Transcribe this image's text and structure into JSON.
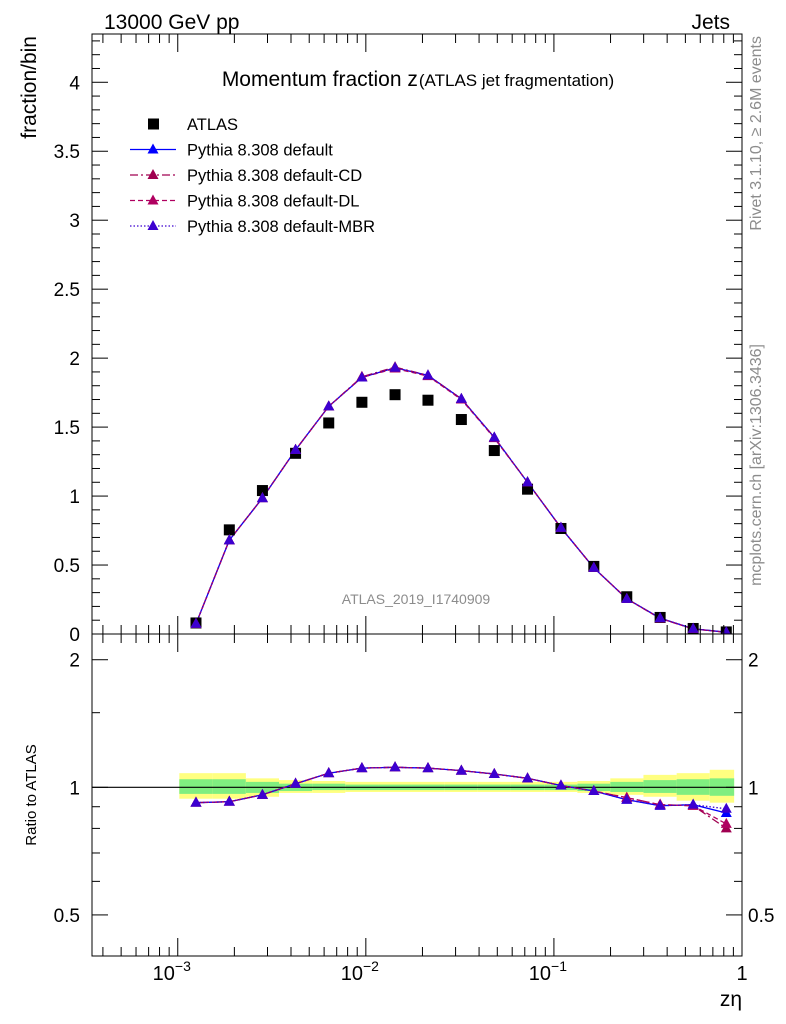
{
  "header": {
    "energy_label": "13000 GeV pp",
    "process_label": "Jets"
  },
  "side_labels": {
    "rivet": "Rivet 3.1.10, ≥ 2.6M events",
    "mcplots": "mcplots.cern.ch [arXiv:1306.3436]"
  },
  "watermark": "ATLAS_2019_I1740909",
  "chart_data": [
    {
      "type": "line",
      "title": "Momentum fraction z",
      "subtitle": "(ATLAS jet fragmentation)",
      "xlabel": "zη",
      "ylabel": "fraction/bin",
      "xscale": "log",
      "xlim": [
        0.00035,
        1.0
      ],
      "ylim": [
        0,
        4.35
      ],
      "y_ticks": [
        "0",
        "0.5",
        "1",
        "1.5",
        "2",
        "2.5",
        "3",
        "3.5",
        "4"
      ],
      "legend_position": "top-left",
      "x": [
        0.00125,
        0.00188,
        0.00282,
        0.00423,
        0.00635,
        0.00953,
        0.0143,
        0.0214,
        0.0322,
        0.0482,
        0.0724,
        0.109,
        0.163,
        0.244,
        0.367,
        0.55,
        0.825
      ],
      "series": [
        {
          "name": "ATLAS",
          "marker": "square",
          "color": "#000000",
          "line": "none",
          "values": [
            0.08,
            0.755,
            1.04,
            1.31,
            1.53,
            1.68,
            1.735,
            1.695,
            1.555,
            1.33,
            1.05,
            0.765,
            0.49,
            0.27,
            0.12,
            0.04,
            0.015
          ]
        },
        {
          "name": "Pythia 8.308 default",
          "marker": "triangle",
          "color": "#0000ff",
          "line": "solid",
          "values": [
            0.074,
            0.68,
            0.985,
            1.335,
            1.65,
            1.86,
            1.93,
            1.875,
            1.705,
            1.425,
            1.1,
            0.77,
            0.48,
            0.255,
            0.115,
            0.038,
            0.013
          ]
        },
        {
          "name": "Pythia 8.308 default-CD",
          "marker": "triangle",
          "color": "#a00050",
          "line": "dashdot",
          "values": [
            0.074,
            0.68,
            0.985,
            1.335,
            1.65,
            1.865,
            1.935,
            1.875,
            1.705,
            1.425,
            1.1,
            0.77,
            0.48,
            0.255,
            0.113,
            0.037,
            0.012
          ]
        },
        {
          "name": "Pythia 8.308 default-DL",
          "marker": "triangle",
          "color": "#b00060",
          "line": "dashed",
          "values": [
            0.074,
            0.68,
            0.985,
            1.335,
            1.65,
            1.86,
            1.925,
            1.87,
            1.7,
            1.42,
            1.1,
            0.77,
            0.48,
            0.255,
            0.113,
            0.037,
            0.012
          ]
        },
        {
          "name": "Pythia 8.308 default-MBR",
          "marker": "triangle",
          "color": "#3c00d0",
          "line": "dotted",
          "values": [
            0.074,
            0.68,
            0.985,
            1.335,
            1.65,
            1.86,
            1.93,
            1.875,
            1.705,
            1.425,
            1.1,
            0.77,
            0.48,
            0.255,
            0.115,
            0.038,
            0.013
          ]
        }
      ]
    },
    {
      "type": "line",
      "ylabel": "Ratio to ATLAS",
      "xlabel": "zη",
      "xscale": "log",
      "yscale": "log",
      "xlim": [
        0.00035,
        1.0
      ],
      "ylim": [
        0.4,
        2.3
      ],
      "y_ticks": [
        "0.5",
        "1",
        "2"
      ],
      "x_ticks": [
        "10−3",
        "10−2",
        "10−1",
        "1"
      ],
      "x": [
        0.00125,
        0.00188,
        0.00282,
        0.00423,
        0.00635,
        0.00953,
        0.0143,
        0.0214,
        0.0322,
        0.0482,
        0.0724,
        0.109,
        0.163,
        0.244,
        0.367,
        0.55,
        0.825
      ],
      "bands": {
        "outer_color": "#ffff80",
        "inner_color": "#80ee80",
        "outer": [
          [
            0.94,
            1.08
          ],
          [
            0.94,
            1.08
          ],
          [
            0.95,
            1.05
          ],
          [
            0.97,
            1.04
          ],
          [
            0.97,
            1.035
          ],
          [
            0.975,
            1.03
          ],
          [
            0.975,
            1.03
          ],
          [
            0.975,
            1.03
          ],
          [
            0.975,
            1.03
          ],
          [
            0.975,
            1.03
          ],
          [
            0.975,
            1.03
          ],
          [
            0.975,
            1.03
          ],
          [
            0.97,
            1.035
          ],
          [
            0.96,
            1.05
          ],
          [
            0.95,
            1.07
          ],
          [
            0.93,
            1.08
          ],
          [
            0.92,
            1.1
          ]
        ],
        "inner": [
          [
            0.965,
            1.045
          ],
          [
            0.965,
            1.045
          ],
          [
            0.97,
            1.03
          ],
          [
            0.98,
            1.02
          ],
          [
            0.985,
            1.02
          ],
          [
            0.985,
            1.015
          ],
          [
            0.985,
            1.015
          ],
          [
            0.985,
            1.015
          ],
          [
            0.985,
            1.015
          ],
          [
            0.985,
            1.015
          ],
          [
            0.985,
            1.015
          ],
          [
            0.985,
            1.015
          ],
          [
            0.98,
            1.02
          ],
          [
            0.975,
            1.03
          ],
          [
            0.97,
            1.04
          ],
          [
            0.96,
            1.045
          ],
          [
            0.955,
            1.05
          ]
        ]
      },
      "series": [
        {
          "name": "Pythia 8.308 default",
          "color": "#0000ff",
          "values": [
            0.92,
            0.925,
            0.96,
            1.02,
            1.08,
            1.11,
            1.115,
            1.11,
            1.095,
            1.075,
            1.05,
            1.01,
            0.98,
            0.935,
            0.905,
            0.91,
            0.87
          ]
        },
        {
          "name": "Pythia 8.308 default-CD",
          "color": "#a00050",
          "values": [
            0.92,
            0.925,
            0.96,
            1.02,
            1.08,
            1.11,
            1.115,
            1.11,
            1.095,
            1.075,
            1.05,
            1.01,
            0.98,
            0.945,
            0.91,
            0.905,
            0.8
          ]
        },
        {
          "name": "Pythia 8.308 default-DL",
          "color": "#b00060",
          "values": [
            0.92,
            0.925,
            0.96,
            1.02,
            1.08,
            1.11,
            1.115,
            1.11,
            1.095,
            1.075,
            1.05,
            1.01,
            0.98,
            0.945,
            0.91,
            0.905,
            0.82
          ]
        },
        {
          "name": "Pythia 8.308 default-MBR",
          "color": "#3c00d0",
          "values": [
            0.92,
            0.925,
            0.96,
            1.02,
            1.08,
            1.11,
            1.115,
            1.11,
            1.095,
            1.075,
            1.05,
            1.01,
            0.98,
            0.935,
            0.905,
            0.91,
            0.89
          ]
        }
      ]
    }
  ]
}
